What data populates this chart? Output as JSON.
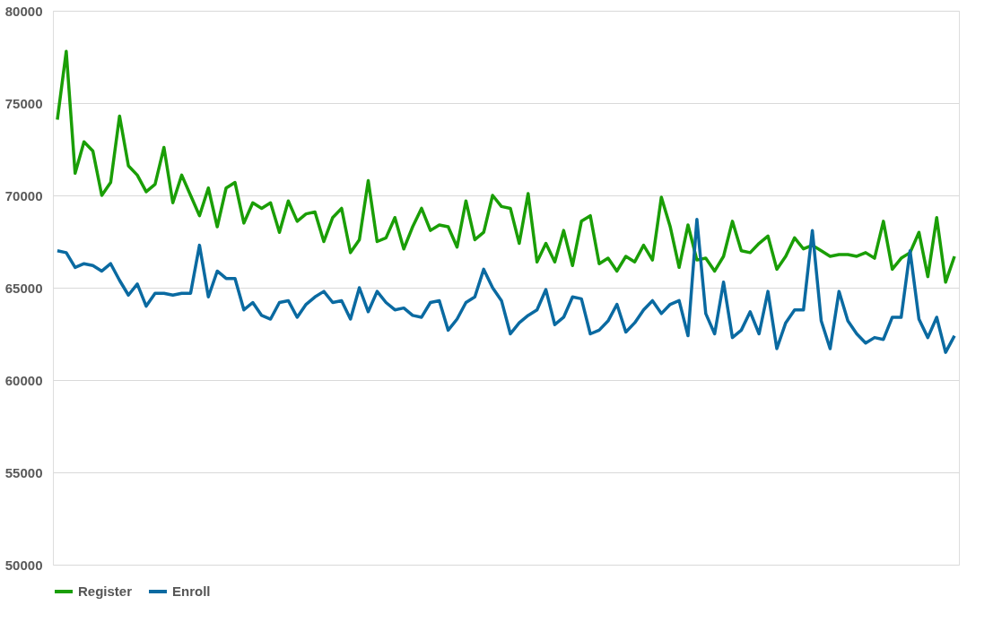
{
  "chart_data": {
    "type": "line",
    "categories": [
      null,
      null,
      null,
      null,
      null,
      null,
      null,
      null,
      null,
      null,
      null,
      null,
      null,
      null,
      null,
      null,
      null,
      null,
      null,
      null,
      null,
      null,
      null,
      null,
      null,
      null,
      null,
      null,
      null,
      null,
      null,
      null,
      null,
      null,
      null,
      null,
      null,
      null,
      null,
      null,
      null,
      null,
      null,
      null,
      null,
      null,
      null,
      null,
      null,
      null,
      null,
      null,
      null,
      null,
      null,
      null,
      null,
      null,
      null,
      null,
      null,
      null,
      null,
      null,
      null,
      null,
      null,
      null,
      null,
      null,
      null,
      null,
      null,
      null,
      null,
      null,
      null,
      null,
      null,
      null,
      null,
      null,
      null,
      null,
      null,
      null,
      null,
      null,
      null,
      null,
      null,
      null,
      null,
      null,
      null,
      null,
      null,
      null,
      null,
      null,
      null,
      null
    ],
    "series": [
      {
        "name": "Register",
        "color": "#1a9e06",
        "values": [
          74100,
          77800,
          71200,
          72900,
          72400,
          70000,
          70700,
          74300,
          71600,
          71100,
          70200,
          70600,
          72600,
          69600,
          71100,
          70000,
          68900,
          70400,
          68300,
          70400,
          70700,
          68500,
          69600,
          69300,
          69600,
          68000,
          69700,
          68600,
          69000,
          69100,
          67500,
          68800,
          69300,
          66900,
          67600,
          70800,
          67500,
          67700,
          68800,
          67100,
          68300,
          69300,
          68100,
          68400,
          68300,
          67200,
          69700,
          67600,
          68000,
          70000,
          69400,
          69300,
          67400,
          70100,
          66400,
          67400,
          66400,
          68100,
          66200,
          68600,
          68900,
          66300,
          66600,
          65900,
          66700,
          66400,
          67300,
          66500,
          69900,
          68300,
          66100,
          68400,
          66500,
          66600,
          65900,
          66700,
          68600,
          67000,
          66900,
          67400,
          67800,
          66000,
          66700,
          67700,
          67100,
          67300,
          67000,
          66700,
          66800,
          66800,
          66700,
          66900,
          66600,
          68600,
          66000,
          66600,
          66900,
          68000,
          65600,
          68800,
          65300,
          66700
        ]
      },
      {
        "name": "Enroll",
        "color": "#0a6aa1",
        "values": [
          67000,
          66900,
          66100,
          66300,
          66200,
          65900,
          66300,
          65400,
          64600,
          65200,
          64000,
          64700,
          64700,
          64600,
          64700,
          64700,
          67300,
          64500,
          65900,
          65500,
          65500,
          63800,
          64200,
          63500,
          63300,
          64200,
          64300,
          63400,
          64100,
          64500,
          64800,
          64200,
          64300,
          63300,
          65000,
          63700,
          64800,
          64200,
          63800,
          63900,
          63500,
          63400,
          64200,
          64300,
          62700,
          63300,
          64200,
          64500,
          66000,
          65000,
          64300,
          62500,
          63100,
          63500,
          63800,
          64900,
          63000,
          63400,
          64500,
          64400,
          62500,
          62700,
          63200,
          64100,
          62600,
          63100,
          63800,
          64300,
          63600,
          64100,
          64300,
          62400,
          68700,
          63600,
          62500,
          65300,
          62300,
          62700,
          63700,
          62500,
          64800,
          61700,
          63100,
          63800,
          63800,
          68100,
          63200,
          61700,
          64800,
          63200,
          62500,
          62000,
          62300,
          62200,
          63400,
          63400,
          67000,
          63300,
          62300,
          63400,
          61500,
          62400
        ]
      }
    ],
    "ylim": [
      50000,
      80000
    ],
    "yticks": [
      50000,
      55000,
      60000,
      65000,
      70000,
      75000,
      80000
    ],
    "grid": "y",
    "legend": "bottom",
    "marker": "none",
    "line_style": "solid"
  }
}
